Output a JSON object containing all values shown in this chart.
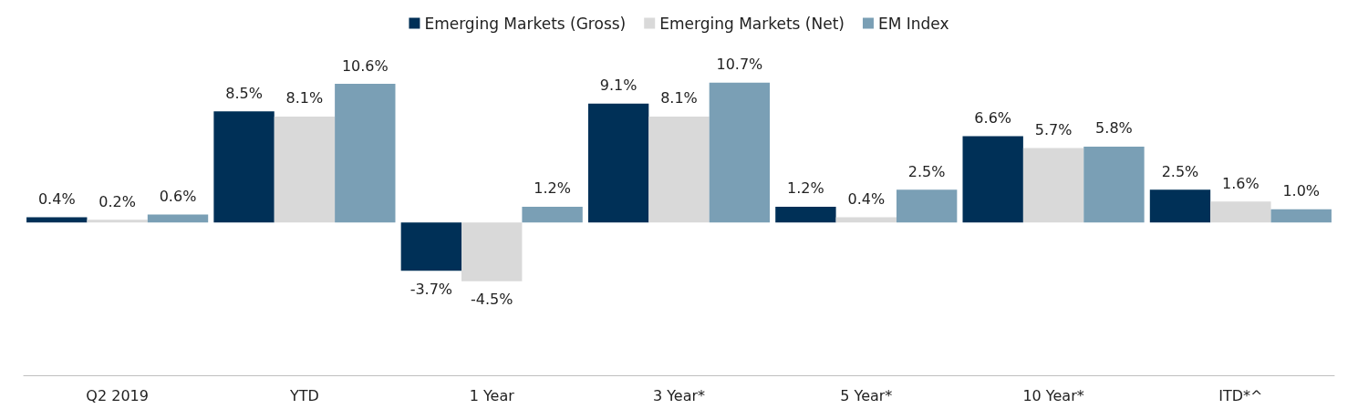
{
  "chart_data": {
    "type": "bar",
    "categories": [
      "Q2 2019",
      "YTD",
      "1 Year",
      "3 Year*",
      "5 Year*",
      "10 Year*",
      "ITD*^"
    ],
    "series": [
      {
        "name": "Emerging Markets (Gross)",
        "color": "#003057",
        "values": [
          0.4,
          8.5,
          -3.7,
          9.1,
          1.2,
          6.6,
          2.5
        ],
        "value_labels": [
          "0.4%",
          "8.5%",
          "-3.7%",
          "9.1%",
          "1.2%",
          "6.6%",
          "2.5%"
        ]
      },
      {
        "name": "Emerging Markets (Net)",
        "color": "#d9d9d9",
        "values": [
          0.2,
          8.1,
          -4.5,
          8.1,
          0.4,
          5.7,
          1.6
        ],
        "value_labels": [
          "0.2%",
          "8.1%",
          "-4.5%",
          "8.1%",
          "0.4%",
          "5.7%",
          "1.6%"
        ]
      },
      {
        "name": "EM Index",
        "color": "#7a9fb5",
        "values": [
          0.6,
          10.6,
          1.2,
          10.7,
          2.5,
          5.8,
          1.0
        ],
        "value_labels": [
          "0.6%",
          "10.6%",
          "1.2%",
          "10.7%",
          "2.5%",
          "5.8%",
          "1.0%"
        ]
      }
    ],
    "legend": "top",
    "grid": false
  }
}
